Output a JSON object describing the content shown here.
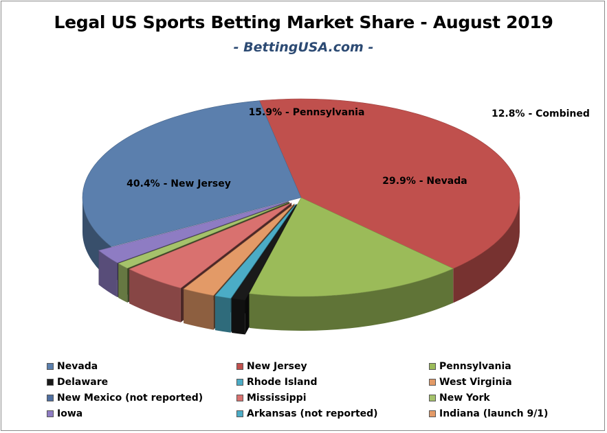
{
  "title": "Legal US Sports Betting Market Share - August 2019",
  "subtitle": "- BettingUSA.com -",
  "chart_data": {
    "type": "pie",
    "title": "Legal US Sports Betting Market Share - August 2019",
    "subtitle": "- BettingUSA.com -",
    "legend_position": "bottom",
    "slices": [
      {
        "name": "New Jersey",
        "value": 40.4,
        "label": "40.4% - New Jersey",
        "color": "#c0504d"
      },
      {
        "name": "Pennsylvania",
        "value": 15.9,
        "label": "15.9% - Pennsylvania",
        "color": "#9bbb59"
      },
      {
        "name": "Delaware",
        "value": 1.0,
        "color": "#1a1a1a"
      },
      {
        "name": "Rhode Island",
        "value": 1.2,
        "color": "#4bacc6"
      },
      {
        "name": "West Virginia",
        "value": 2.4,
        "color": "#e39a67"
      },
      {
        "name": "Mississippi",
        "value": 4.8,
        "color": "#d9716f"
      },
      {
        "name": "New York",
        "value": 1.0,
        "color": "#a5c26b"
      },
      {
        "name": "Iowa",
        "value": 2.4,
        "color": "#8e7cc3"
      },
      {
        "name": "Nevada",
        "value": 29.9,
        "label": "29.9% - Nevada",
        "color": "#5b7fad"
      }
    ],
    "combined_label": "12.8% - Combined",
    "legend": [
      {
        "name": "Nevada",
        "color": "#5b7fad"
      },
      {
        "name": "New Jersey",
        "color": "#c0504d"
      },
      {
        "name": "Pennsylvania",
        "color": "#9bbb59"
      },
      {
        "name": "Delaware",
        "color": "#1a1a1a"
      },
      {
        "name": "Rhode Island",
        "color": "#4bacc6"
      },
      {
        "name": "West Virginia",
        "color": "#e39a67"
      },
      {
        "name": "New Mexico (not reported)",
        "color": "#4f6fa0"
      },
      {
        "name": "Mississippi",
        "color": "#d9716f"
      },
      {
        "name": "New York",
        "color": "#a5c26b"
      },
      {
        "name": "Iowa",
        "color": "#8e7cc3"
      },
      {
        "name": "Arkansas (not reported)",
        "color": "#4bacc6"
      },
      {
        "name": "Indiana (launch 9/1)",
        "color": "#e39a67"
      }
    ]
  }
}
